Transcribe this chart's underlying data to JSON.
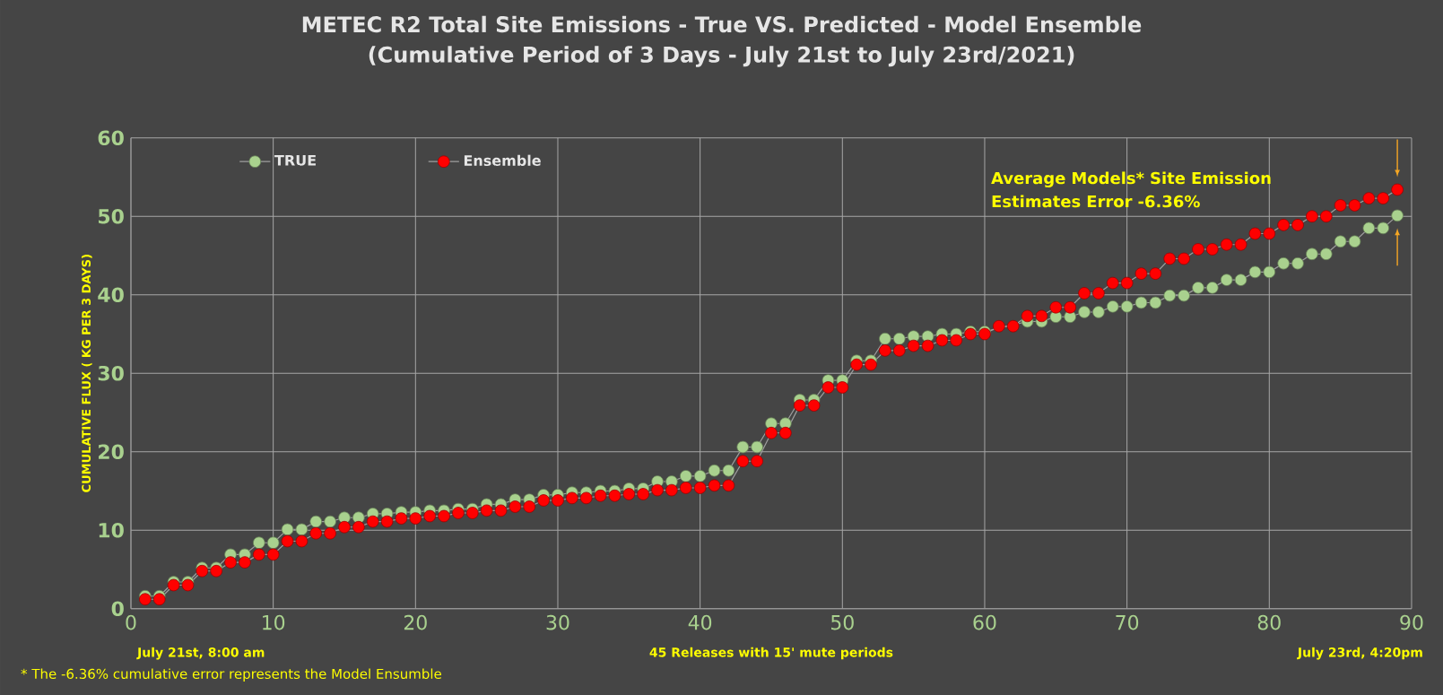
{
  "chart_data": {
    "type": "line",
    "title": "METEC R2 Total Site Emissions - True VS. Predicted - Model Ensemble",
    "subtitle": "(Cumulative Period of 3 Days - July 21st to July 23rd/2021)",
    "ylabel": "CUMULATIVE FLUX ( KG PER 3 DAYS)",
    "x": [
      1,
      2,
      3,
      4,
      5,
      6,
      7,
      8,
      9,
      10,
      11,
      12,
      13,
      14,
      15,
      16,
      17,
      18,
      19,
      20,
      21,
      22,
      23,
      24,
      25,
      26,
      27,
      28,
      29,
      30,
      31,
      32,
      33,
      34,
      35,
      36,
      37,
      38,
      39,
      40,
      41,
      42,
      43,
      44,
      45,
      46,
      47,
      48,
      49,
      50,
      51,
      52,
      53,
      54,
      55,
      56,
      57,
      58,
      59,
      60,
      61,
      62,
      63,
      64,
      65,
      66,
      67,
      68,
      69,
      70,
      71,
      72,
      73,
      74,
      75,
      76,
      77,
      78,
      79,
      80,
      81,
      82,
      83,
      84,
      85,
      86,
      87,
      88,
      89
    ],
    "series": [
      {
        "name": "TRUE",
        "color": "#a9d18e",
        "values": [
          1.6,
          1.6,
          3.4,
          3.4,
          5.2,
          5.2,
          6.9,
          6.9,
          8.4,
          8.4,
          10.1,
          10.1,
          11.1,
          11.1,
          11.6,
          11.6,
          12.1,
          12.1,
          12.3,
          12.3,
          12.5,
          12.5,
          12.7,
          12.7,
          13.3,
          13.3,
          13.9,
          13.9,
          14.5,
          14.5,
          14.8,
          14.8,
          15.0,
          15.0,
          15.3,
          15.3,
          16.2,
          16.2,
          16.9,
          16.9,
          17.6,
          17.6,
          20.6,
          20.6,
          23.6,
          23.6,
          26.6,
          26.6,
          29.1,
          29.1,
          31.6,
          31.6,
          34.4,
          34.4,
          34.7,
          34.7,
          35.0,
          35.0,
          35.3,
          35.3,
          null,
          null,
          36.6,
          36.6,
          37.2,
          37.2,
          37.8,
          37.8,
          38.5,
          38.5,
          39.0,
          39.0,
          39.9,
          39.9,
          40.9,
          40.9,
          41.9,
          41.9,
          42.9,
          42.9,
          44.0,
          44.0,
          45.2,
          45.2,
          46.8,
          46.8,
          48.5,
          48.5,
          50.1
        ]
      },
      {
        "name": "Ensemble",
        "color": "#ff0000",
        "values": [
          1.2,
          1.2,
          3.0,
          3.0,
          4.8,
          4.8,
          5.9,
          5.9,
          6.9,
          6.9,
          8.6,
          8.6,
          9.6,
          9.6,
          10.4,
          10.4,
          11.1,
          11.1,
          11.5,
          11.5,
          11.8,
          11.8,
          12.2,
          12.2,
          12.5,
          12.5,
          13.0,
          13.0,
          13.8,
          13.8,
          14.1,
          14.1,
          14.4,
          14.4,
          14.6,
          14.6,
          15.1,
          15.1,
          15.4,
          15.4,
          15.7,
          15.7,
          18.8,
          18.8,
          22.4,
          22.4,
          25.9,
          25.9,
          28.2,
          28.2,
          31.1,
          31.1,
          32.9,
          32.9,
          33.5,
          33.5,
          34.2,
          34.2,
          35.0,
          35.0,
          36.0,
          36.0,
          37.3,
          37.3,
          38.4,
          38.4,
          40.2,
          40.2,
          41.5,
          41.5,
          42.7,
          42.7,
          44.6,
          44.6,
          45.8,
          45.8,
          46.4,
          46.4,
          47.8,
          47.8,
          48.9,
          48.9,
          50.0,
          50.0,
          51.4,
          51.4,
          52.3,
          52.3,
          53.4
        ]
      }
    ],
    "xlim": [
      0,
      90
    ],
    "ylim": [
      0,
      60
    ],
    "xticks": [
      0,
      10,
      20,
      30,
      40,
      50,
      60,
      70,
      80,
      90
    ],
    "yticks": [
      0,
      10,
      20,
      30,
      40,
      50,
      60
    ],
    "grid": true,
    "legend": "top left",
    "marker": "circle",
    "line_style": "solid",
    "annotations": [
      "Average Models* Site Emission Estimates Error   -6.36%",
      "July 21st, 8:00 am",
      "45 Releases with 15' mute periods",
      "July 23rd, 4:20pm",
      "* The -6.36% cumulative error represents the Model Ensumble"
    ]
  }
}
